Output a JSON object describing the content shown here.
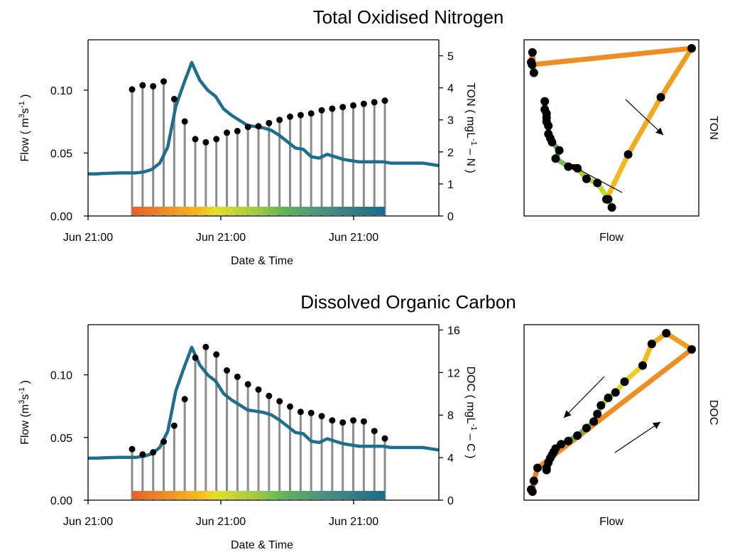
{
  "chart_data": [
    {
      "type": "line",
      "panel": "time-series",
      "title": "Total Oxidised Nitrogen",
      "xlabel": "Date & Time",
      "ylabel_left": "Flow ( m^3s^-1 )",
      "ylabel_right": "TON ( mgL^-1 – N )",
      "x_tick_labels": [
        "Jun 21:00",
        "Jun 21:00",
        "Jun 21:00"
      ],
      "ylim_left": [
        0,
        0.14
      ],
      "yticks_left": [
        0.0,
        0.05,
        0.1
      ],
      "ylim_right": [
        0,
        5.5
      ],
      "yticks_right": [
        0,
        1,
        2,
        3,
        4,
        5
      ],
      "series": [
        {
          "role": "flow",
          "color": "#1f6e8c",
          "values": [
            0.0335,
            0.0335,
            0.0338,
            0.034,
            0.0342,
            0.0342,
            0.0342,
            0.035,
            0.037,
            0.042,
            0.055,
            0.087,
            0.105,
            0.122,
            0.108,
            0.1,
            0.095,
            0.085,
            0.08,
            0.076,
            0.072,
            0.071,
            0.07,
            0.068,
            0.064,
            0.059,
            0.054,
            0.053,
            0.047,
            0.046,
            0.049,
            0.047,
            0.045,
            0.044,
            0.043,
            0.043,
            0.043,
            0.043,
            0.042,
            0.042,
            0.042,
            0.042,
            0.042,
            0.041,
            0.04
          ]
        },
        {
          "role": "samples",
          "values": [
            3.95,
            4.08,
            4.05,
            4.2,
            3.65,
            2.95,
            2.4,
            2.3,
            2.4,
            2.6,
            2.65,
            2.78,
            2.8,
            2.9,
            3.0,
            3.1,
            3.15,
            3.2,
            3.3,
            3.35,
            3.4,
            3.45,
            3.5,
            3.55,
            3.6
          ]
        }
      ]
    },
    {
      "type": "scatter",
      "panel": "hysteresis",
      "title": "",
      "xlabel": "Flow",
      "ylabel_right": "TON",
      "points": [
        [
          0.0335,
          4.08
        ],
        [
          0.0342,
          4.2
        ],
        [
          0.035,
          3.95
        ],
        [
          0.034,
          4.05
        ],
        [
          0.122,
          4.25
        ],
        [
          0.105,
          3.65
        ],
        [
          0.087,
          2.95
        ],
        [
          0.075,
          2.4
        ],
        [
          0.078,
          2.3
        ],
        [
          0.076,
          2.4
        ],
        [
          0.07,
          2.6
        ],
        [
          0.064,
          2.65
        ],
        [
          0.059,
          2.78
        ],
        [
          0.054,
          2.8
        ],
        [
          0.047,
          2.9
        ],
        [
          0.049,
          3.0
        ],
        [
          0.045,
          3.1
        ],
        [
          0.044,
          3.15
        ],
        [
          0.043,
          3.2
        ],
        [
          0.043,
          3.3
        ],
        [
          0.042,
          3.35
        ],
        [
          0.042,
          3.4
        ],
        [
          0.042,
          3.45
        ],
        [
          0.041,
          3.5
        ],
        [
          0.041,
          3.6
        ]
      ]
    },
    {
      "type": "line",
      "panel": "time-series",
      "title": "Dissolved Organic Carbon",
      "xlabel": "Date & Time",
      "ylabel_left": "Flow (m^3s^-1 )",
      "ylabel_right": "DOC ( mgL^-1 – C )",
      "x_tick_labels": [
        "Jun 21:00",
        "Jun 21:00",
        "Jun 21:00"
      ],
      "ylim_left": [
        0,
        0.14
      ],
      "yticks_left": [
        0.0,
        0.05,
        0.1
      ],
      "ylim_right": [
        0,
        16.5
      ],
      "yticks_right": [
        0,
        4,
        8,
        12,
        16
      ],
      "series": [
        {
          "role": "flow",
          "color": "#1f6e8c",
          "values": [
            0.0335,
            0.0335,
            0.0338,
            0.034,
            0.0342,
            0.0342,
            0.0342,
            0.035,
            0.037,
            0.042,
            0.055,
            0.087,
            0.105,
            0.122,
            0.108,
            0.1,
            0.095,
            0.085,
            0.08,
            0.076,
            0.072,
            0.071,
            0.07,
            0.068,
            0.064,
            0.059,
            0.054,
            0.053,
            0.047,
            0.046,
            0.049,
            0.047,
            0.045,
            0.044,
            0.043,
            0.043,
            0.043,
            0.043,
            0.042,
            0.042,
            0.042,
            0.042,
            0.042,
            0.041,
            0.04
          ]
        },
        {
          "role": "samples",
          "values": [
            4.8,
            4.3,
            4.5,
            5.5,
            7.0,
            9.5,
            13.4,
            14.4,
            13.7,
            12.2,
            11.6,
            10.9,
            10.4,
            9.8,
            9.3,
            8.8,
            8.3,
            8.2,
            7.9,
            7.5,
            7.3,
            7.5,
            7.4,
            6.5,
            5.8
          ]
        }
      ]
    },
    {
      "type": "scatter",
      "panel": "hysteresis",
      "title": "",
      "xlabel": "Flow",
      "ylabel_right": "DOC",
      "points": [
        [
          0.0335,
          1.0
        ],
        [
          0.0342,
          0.8
        ],
        [
          0.035,
          1.8
        ],
        [
          0.037,
          3.0
        ],
        [
          0.122,
          14.0
        ],
        [
          0.108,
          15.5
        ],
        [
          0.1,
          14.5
        ],
        [
          0.095,
          12.5
        ],
        [
          0.085,
          11.0
        ],
        [
          0.08,
          10.0
        ],
        [
          0.076,
          9.5
        ],
        [
          0.072,
          8.8
        ],
        [
          0.07,
          8.0
        ],
        [
          0.068,
          7.3
        ],
        [
          0.064,
          6.7
        ],
        [
          0.059,
          6.0
        ],
        [
          0.054,
          5.5
        ],
        [
          0.05,
          5.2
        ],
        [
          0.047,
          4.8
        ],
        [
          0.046,
          4.5
        ],
        [
          0.045,
          4.2
        ],
        [
          0.044,
          3.9
        ],
        [
          0.043,
          3.5
        ],
        [
          0.042,
          3.0
        ],
        [
          0.042,
          2.8
        ]
      ]
    }
  ]
}
